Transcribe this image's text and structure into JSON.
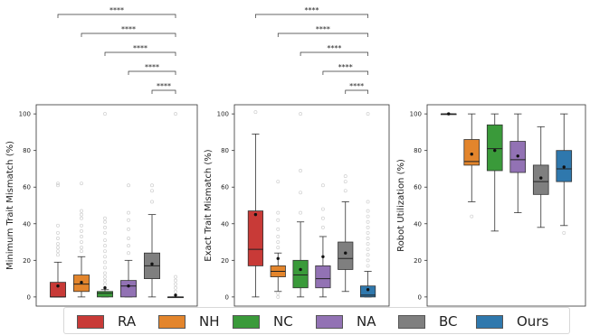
{
  "chart_data": [
    {
      "type": "box",
      "ylabel": "Minimum Trait Mismatch (%)",
      "ylim": [
        -5,
        105
      ],
      "yticks": [
        0,
        20,
        40,
        60,
        80,
        100
      ],
      "grid": false,
      "categories": [
        "RA",
        "NH",
        "NC",
        "NA",
        "BC",
        "Ours"
      ],
      "boxes": [
        {
          "group": "RA",
          "q1": 0,
          "median": 0,
          "q3": 8,
          "whisker_low": 0,
          "whisker_high": 19,
          "mean": 6,
          "outliers": [
            23,
            25,
            27,
            29,
            32,
            35,
            39,
            61,
            62
          ]
        },
        {
          "group": "NH",
          "q1": 3,
          "median": 7,
          "q3": 12,
          "whisker_low": 0,
          "whisker_high": 22,
          "mean": 8,
          "outliers": [
            25,
            27,
            30,
            33,
            36,
            39,
            43,
            45,
            47,
            62
          ]
        },
        {
          "group": "NC",
          "q1": 0,
          "median": 2,
          "q3": 3,
          "whisker_low": 0,
          "whisker_high": 4,
          "mean": 5,
          "outliers": [
            7,
            9,
            11,
            13,
            16,
            19,
            22,
            25,
            28,
            31,
            35,
            38,
            41,
            43,
            100
          ]
        },
        {
          "group": "NA",
          "q1": 0,
          "median": 6,
          "q3": 9,
          "whisker_low": 0,
          "whisker_high": 20,
          "mean": 6,
          "outliers": [
            24,
            28,
            32,
            37,
            42,
            46,
            61
          ]
        },
        {
          "group": "BC",
          "q1": 10,
          "median": 17,
          "q3": 24,
          "whisker_low": 0,
          "whisker_high": 45,
          "mean": 18,
          "outliers": [
            52,
            58,
            61
          ]
        },
        {
          "group": "Ours",
          "q1": 0,
          "median": 0,
          "q3": 0,
          "whisker_low": 0,
          "whisker_high": 0,
          "mean": 1,
          "outliers": [
            3,
            5,
            7,
            9,
            11,
            100
          ]
        }
      ],
      "significance": {
        "label": "****",
        "comparisons": [
          [
            "RA",
            "Ours"
          ],
          [
            "NH",
            "Ours"
          ],
          [
            "NC",
            "Ours"
          ],
          [
            "NA",
            "Ours"
          ],
          [
            "BC",
            "Ours"
          ]
        ]
      }
    },
    {
      "type": "box",
      "ylabel": "Exact Trait Mismatch (%)",
      "ylim": [
        -5,
        105
      ],
      "yticks": [
        0,
        20,
        40,
        60,
        80,
        100
      ],
      "grid": false,
      "categories": [
        "RA",
        "NH",
        "NC",
        "NA",
        "BC",
        "Ours"
      ],
      "boxes": [
        {
          "group": "RA",
          "q1": 17,
          "median": 26,
          "q3": 47,
          "whisker_low": 0,
          "whisker_high": 89,
          "mean": 45,
          "outliers": [
            101
          ]
        },
        {
          "group": "NH",
          "q1": 11,
          "median": 14,
          "q3": 17,
          "whisker_low": 3,
          "whisker_high": 24,
          "mean": 21,
          "outliers": [
            0,
            2,
            27,
            30,
            33,
            37,
            42,
            46,
            63
          ]
        },
        {
          "group": "NC",
          "q1": 5,
          "median": 12,
          "q3": 20,
          "whisker_low": 0,
          "whisker_high": 41,
          "mean": 15,
          "outliers": [
            46,
            57,
            69,
            100
          ]
        },
        {
          "group": "NA",
          "q1": 5,
          "median": 10,
          "q3": 17,
          "whisker_low": 0,
          "whisker_high": 33,
          "mean": 22,
          "outliers": [
            38,
            43,
            48,
            61
          ]
        },
        {
          "group": "BC",
          "q1": 15,
          "median": 21,
          "q3": 30,
          "whisker_low": 3,
          "whisker_high": 52,
          "mean": 24,
          "outliers": [
            58,
            63,
            66
          ]
        },
        {
          "group": "Ours",
          "q1": 0,
          "median": 1,
          "q3": 6,
          "whisker_low": 0,
          "whisker_high": 14,
          "mean": 4,
          "outliers": [
            17,
            20,
            23,
            26,
            29,
            32,
            35,
            38,
            41,
            44,
            47,
            52,
            100
          ]
        }
      ],
      "significance": {
        "label": "****",
        "comparisons": [
          [
            "RA",
            "Ours"
          ],
          [
            "NH",
            "Ours"
          ],
          [
            "NC",
            "Ours"
          ],
          [
            "NA",
            "Ours"
          ],
          [
            "BC",
            "Ours"
          ]
        ]
      }
    },
    {
      "type": "box",
      "ylabel": "Robot Utilization (%)",
      "ylim": [
        -5,
        105
      ],
      "yticks": [
        0,
        20,
        40,
        60,
        80,
        100
      ],
      "grid": false,
      "categories": [
        "RA",
        "NH",
        "NC",
        "NA",
        "BC",
        "Ours"
      ],
      "boxes": [
        {
          "group": "RA",
          "q1": 100,
          "median": 100,
          "q3": 100,
          "whisker_low": 100,
          "whisker_high": 100,
          "mean": 100,
          "outliers": []
        },
        {
          "group": "NH",
          "q1": 72,
          "median": 74,
          "q3": 86,
          "whisker_low": 52,
          "whisker_high": 100,
          "mean": 78,
          "outliers": [
            44
          ]
        },
        {
          "group": "NC",
          "q1": 69,
          "median": 81,
          "q3": 94,
          "whisker_low": 36,
          "whisker_high": 100,
          "mean": 80,
          "outliers": []
        },
        {
          "group": "NA",
          "q1": 68,
          "median": 75,
          "q3": 85,
          "whisker_low": 46,
          "whisker_high": 100,
          "mean": 77,
          "outliers": []
        },
        {
          "group": "BC",
          "q1": 56,
          "median": 63,
          "q3": 72,
          "whisker_low": 38,
          "whisker_high": 93,
          "mean": 65,
          "outliers": []
        },
        {
          "group": "Ours",
          "q1": 63,
          "median": 70,
          "q3": 80,
          "whisker_low": 39,
          "whisker_high": 100,
          "mean": 71,
          "outliers": [
            35
          ]
        }
      ]
    }
  ],
  "legend": {
    "placement": "bottom",
    "items": [
      {
        "label": "RA",
        "color": "#c83a37"
      },
      {
        "label": "NH",
        "color": "#e3852c"
      },
      {
        "label": "NC",
        "color": "#3a9a3a"
      },
      {
        "label": "NA",
        "color": "#9272b4"
      },
      {
        "label": "BC",
        "color": "#7f7f7f"
      },
      {
        "label": "Ours",
        "color": "#2f78ad"
      }
    ]
  }
}
